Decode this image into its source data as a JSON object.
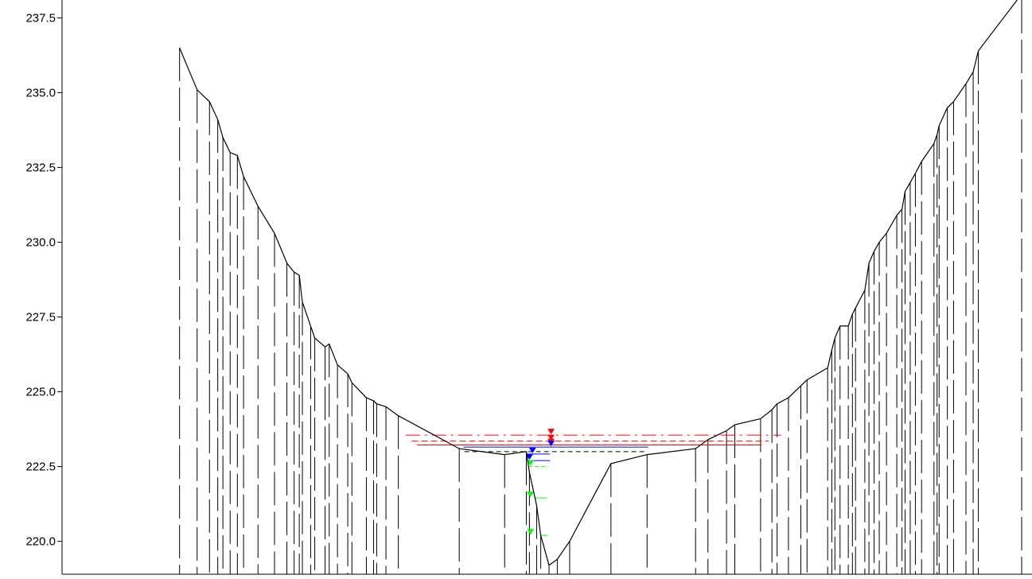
{
  "chart_data": {
    "type": "line",
    "title": "",
    "xlabel": "",
    "ylabel": "",
    "grid": false,
    "legend": "none",
    "xlim": [
      0,
      100
    ],
    "ylim": [
      218.9,
      238.1
    ],
    "y_ticks": [
      {
        "value": 220.0,
        "label": "220.0"
      },
      {
        "value": 222.5,
        "label": "222.5"
      },
      {
        "value": 225.0,
        "label": "225.0"
      },
      {
        "value": 227.5,
        "label": "227.5"
      },
      {
        "value": 230.0,
        "label": "230.0"
      },
      {
        "value": 232.5,
        "label": "232.5"
      },
      {
        "value": 235.0,
        "label": "235.0"
      },
      {
        "value": 237.5,
        "label": "237.5"
      }
    ],
    "colors": {
      "profile": "#000000",
      "stations": "#000000",
      "red_levels": "#ff0000",
      "blue_levels": "#0000ff",
      "green_levels": "#00ff00"
    },
    "series": [
      {
        "type": "line",
        "x": [
          17.4,
          19.1,
          20.3,
          21.1,
          21.6,
          22.3,
          23.0,
          23.6,
          25.0,
          26.6,
          27.8,
          28.5,
          29.0,
          29.3,
          30.1,
          30.5,
          31.5,
          31.9,
          32.7,
          33.7,
          34.1,
          35.5,
          36.2,
          36.5,
          37.4,
          38.6,
          44.5,
          48.9,
          51.0,
          51.3,
          52.0,
          52.4,
          53.2,
          54.0,
          55.2,
          59.2,
          62.7,
          67.4,
          68.6,
          70.4,
          71.2,
          73.7,
          74.8,
          75.3,
          76.4,
          77.6,
          78.2,
          80.2,
          80.6,
          80.9,
          81.4,
          82.2,
          82.6,
          82.9,
          83.8,
          84.2,
          84.7,
          85.2,
          85.9,
          86.9,
          87.4,
          87.7,
          88.2,
          88.7,
          89.3,
          90.5,
          90.8,
          91.0,
          91.8,
          92.4,
          93.6,
          94.3,
          94.8,
          99.0
        ],
        "y": [
          236.5,
          235.1,
          234.7,
          234.1,
          233.5,
          233.0,
          232.9,
          232.2,
          231.2,
          230.3,
          229.3,
          229.0,
          228.9,
          228.0,
          227.2,
          226.8,
          226.5,
          226.6,
          225.9,
          225.6,
          225.3,
          224.8,
          224.7,
          224.6,
          224.5,
          224.2,
          223.1,
          222.9,
          223.0,
          222.3,
          221.2,
          220.2,
          219.2,
          219.4,
          220.0,
          222.6,
          222.9,
          223.1,
          223.4,
          223.7,
          223.9,
          224.1,
          224.4,
          224.6,
          224.8,
          225.2,
          225.4,
          225.8,
          226.4,
          226.8,
          227.2,
          227.2,
          227.6,
          227.8,
          228.4,
          229.3,
          229.7,
          230.0,
          230.3,
          230.9,
          231.1,
          231.7,
          232.0,
          232.3,
          232.7,
          233.3,
          233.6,
          233.9,
          234.5,
          234.7,
          235.3,
          235.7,
          236.4,
          238.3
        ]
      }
    ],
    "stations_x": [
      17.4,
      19.1,
      20.3,
      21.1,
      21.6,
      22.3,
      23.0,
      23.6,
      25.0,
      26.6,
      27.8,
      28.5,
      29.0,
      29.3,
      30.1,
      30.5,
      31.5,
      31.9,
      32.7,
      33.7,
      34.1,
      35.5,
      36.2,
      36.5,
      37.4,
      38.6,
      44.5,
      48.9,
      51.0,
      51.3,
      52.0,
      52.4,
      53.2,
      54.0,
      55.2,
      59.2,
      62.7,
      67.4,
      68.6,
      70.4,
      71.2,
      73.7,
      74.8,
      75.3,
      76.4,
      77.6,
      78.2,
      80.2,
      80.6,
      80.9,
      81.4,
      82.2,
      82.6,
      82.9,
      83.8,
      84.2,
      84.7,
      85.2,
      85.9,
      86.9,
      87.4,
      87.7,
      88.2,
      88.7,
      89.3,
      90.5,
      90.8,
      91.0,
      91.8,
      92.4,
      93.6,
      94.3,
      94.8,
      99.0
    ],
    "water_levels": [
      {
        "color": "red",
        "y": 223.55,
        "x1": 39.3,
        "x2": 75.7,
        "dash": "18,6,3,6",
        "marker_x": 53.4
      },
      {
        "color": "red",
        "y": 223.35,
        "x1": 39.9,
        "x2": 74.5,
        "dash": "8,4",
        "marker_x": 53.4
      },
      {
        "color": "red",
        "y": 223.22,
        "x1": 40.4,
        "x2": 73.8,
        "dash": "",
        "marker_x": 53.4
      },
      {
        "color": "blue",
        "y": 223.15,
        "x1": 44.9,
        "x2": 62.8,
        "dash": "",
        "marker_x": 53.4
      },
      {
        "color": "black",
        "y": 223.0,
        "x1": 45.0,
        "x2": 62.7,
        "dash": "6,4",
        "marker_x": null
      },
      {
        "color": "blue",
        "y": 222.92,
        "x1": 51.0,
        "x2": 53.3,
        "dash": "",
        "marker_x": 51.6
      },
      {
        "color": "blue",
        "y": 222.7,
        "x1": 51.1,
        "x2": 53.3,
        "dash": "",
        "marker_x": 51.3
      },
      {
        "color": "green",
        "y": 222.5,
        "x1": 51.2,
        "x2": 53.1,
        "dash": "5,3",
        "marker_x": 51.4
      },
      {
        "color": "green",
        "y": 221.45,
        "x1": 51.8,
        "x2": 53.0,
        "dash": "",
        "marker_x": 51.4
      },
      {
        "color": "green",
        "y": 220.2,
        "x1": 52.4,
        "x2": 53.1,
        "dash": "",
        "marker_x": 51.4
      }
    ]
  }
}
